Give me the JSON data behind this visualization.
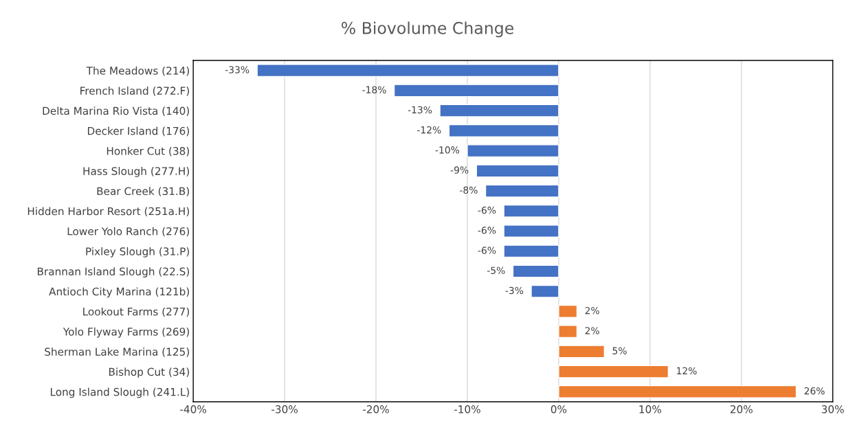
{
  "chart_data": {
    "type": "bar",
    "orientation": "horizontal",
    "title": "% Biovolume Change",
    "categories": [
      "The Meadows (214)",
      "French Island (272.F)",
      "Delta Marina Rio Vista (140)",
      "Decker Island (176)",
      "Honker Cut (38)",
      "Hass Slough (277.H)",
      "Bear Creek (31.B)",
      "Hidden Harbor Resort (251a.H)",
      "Lower Yolo Ranch (276)",
      "Pixley Slough (31.P)",
      "Brannan Island Slough (22.S)",
      "Antioch City Marina (121b)",
      "Lookout Farms (277)",
      "Yolo Flyway Farms (269)",
      "Sherman Lake Marina (125)",
      "Bishop Cut (34)",
      "Long Island Slough (241.L)"
    ],
    "values": [
      -33,
      -18,
      -13,
      -12,
      -10,
      -9,
      -8,
      -6,
      -6,
      -6,
      -5,
      -3,
      2,
      2,
      5,
      12,
      26
    ],
    "value_labels": [
      "-33%",
      "-18%",
      "-13%",
      "-12%",
      "-10%",
      "-9%",
      "-8%",
      "-6%",
      "-6%",
      "-6%",
      "-5%",
      "-3%",
      "2%",
      "2%",
      "5%",
      "12%",
      "26%"
    ],
    "colors": [
      "#4472c4",
      "#4472c4",
      "#4472c4",
      "#4472c4",
      "#4472c4",
      "#4472c4",
      "#4472c4",
      "#4472c4",
      "#4472c4",
      "#4472c4",
      "#4472c4",
      "#4472c4",
      "#ed7d31",
      "#ed7d31",
      "#ed7d31",
      "#ed7d31",
      "#ed7d31"
    ],
    "xlim": [
      -40,
      30
    ],
    "xticks": [
      {
        "value": -40,
        "label": "-40%"
      },
      {
        "value": -30,
        "label": "-30%"
      },
      {
        "value": -20,
        "label": "-20%"
      },
      {
        "value": -10,
        "label": "-10%"
      },
      {
        "value": 0,
        "label": "0%"
      },
      {
        "value": 10,
        "label": "10%"
      },
      {
        "value": 20,
        "label": "20%"
      },
      {
        "value": 30,
        "label": "30%"
      }
    ],
    "grid": "x",
    "legend": false
  }
}
